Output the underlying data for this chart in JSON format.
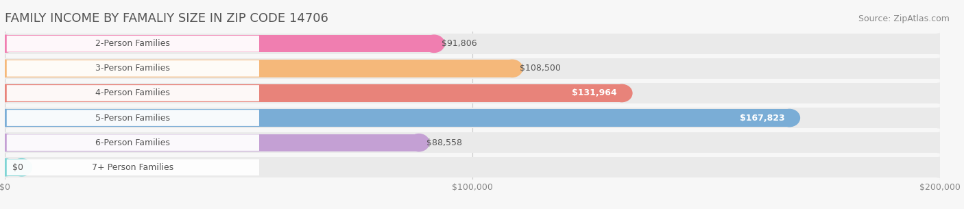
{
  "title": "FAMILY INCOME BY FAMALIY SIZE IN ZIP CODE 14706",
  "source": "Source: ZipAtlas.com",
  "categories": [
    "2-Person Families",
    "3-Person Families",
    "4-Person Families",
    "5-Person Families",
    "6-Person Families",
    "7+ Person Families"
  ],
  "values": [
    91806,
    108500,
    131964,
    167823,
    88558,
    0
  ],
  "bar_colors": [
    "#F07EB0",
    "#F5B87A",
    "#E8837A",
    "#7AADD6",
    "#C4A0D4",
    "#7DD4D4"
  ],
  "bar_bg_color": "#EAEAEA",
  "label_bg_color": "#FFFFFF",
  "value_labels": [
    "$91,806",
    "$108,500",
    "$131,964",
    "$167,823",
    "$88,558",
    "$0"
  ],
  "value_label_inside": [
    false,
    false,
    true,
    true,
    false,
    false
  ],
  "xlim": [
    0,
    200000
  ],
  "xticks": [
    0,
    100000,
    200000
  ],
  "xticklabels": [
    "$0",
    "$100,000",
    "$200,000"
  ],
  "background_color": "#F7F7F7",
  "title_fontsize": 13,
  "source_fontsize": 9,
  "label_fontsize": 9,
  "value_fontsize": 9
}
